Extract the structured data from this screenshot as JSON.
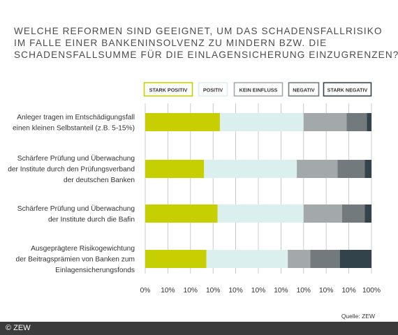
{
  "title_lines": [
    "WELCHE REFORMEN SIND GEEIGNET, UM DAS SCHADENSFALLRISIKO",
    "IM FALLE EINER BANKENINSOLVENZ ZU MINDERN BZW. DIE",
    "SCHADENSFALLSUMME FÜR DIE EINLAGENSICHERUNG EINZUGRENZEN?"
  ],
  "source": "Quelle: ZEW",
  "copyright": "© ZEW",
  "colors": {
    "stark_positiv": "#c8cf00",
    "positiv": "#dcefef",
    "kein_einfluss": "#a3a8aa",
    "negativ": "#727a7e",
    "stark_negativ": "#32434b",
    "grid": "#bfbfbf",
    "text": "#333333"
  },
  "chart_data": {
    "type": "bar",
    "orientation": "horizontal",
    "stacked": true,
    "xlim": [
      0,
      100
    ],
    "x_tick_labels": [
      "0%",
      "10%",
      "10%",
      "10%",
      "10%",
      "10%",
      "10%",
      "10%",
      "10%",
      "10%",
      "100%"
    ],
    "grid": true,
    "legend_position": "top",
    "categories": [
      [
        "Anleger tragen im Entschädigungsfall",
        "einen kleinen Selbstanteil (z.B. 5-15%)"
      ],
      [
        "Schärfere Prüfung und Überwachung",
        "der Institute durch den Prüfungsverband",
        "der deutschen Banken"
      ],
      [
        "Schärfere Prüfung und Überwachung",
        "der Institute durch die Bafin"
      ],
      [
        "Ausgeprägtere Risikogewichtung",
        "der Beitragsprämien von Banken zum",
        "Einlagensicherungsfonds"
      ]
    ],
    "series": [
      {
        "name": "STARK POSITIV",
        "color_key": "stark_positiv",
        "values": [
          33,
          26,
          32,
          27
        ]
      },
      {
        "name": "POSITIV",
        "color_key": "positiv",
        "values": [
          37,
          41,
          38,
          36
        ]
      },
      {
        "name": "KEIN EINFLUSS",
        "color_key": "kein_einfluss",
        "values": [
          19,
          18,
          17,
          10
        ]
      },
      {
        "name": "NEGATIV",
        "color_key": "negativ",
        "values": [
          9,
          12,
          10,
          13
        ]
      },
      {
        "name": "STARK NEGATIV",
        "color_key": "stark_negativ",
        "values": [
          2,
          3,
          3,
          14
        ]
      }
    ]
  }
}
